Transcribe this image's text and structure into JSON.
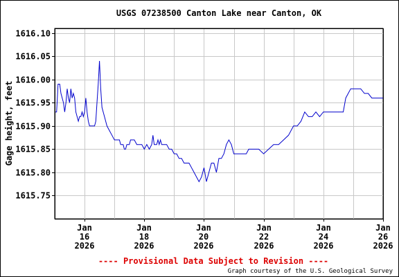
{
  "chart_data": {
    "type": "line",
    "title": "USGS 07238500 Canton Lake near Canton, OK",
    "ylabel": "Gage height, feet",
    "xlabel": "",
    "ylim": [
      1615.7,
      1616.11
    ],
    "xlim": [
      "2026-01-15",
      "2026-01-26"
    ],
    "y_ticks": [
      "1615.75",
      "1615.80",
      "1615.85",
      "1615.90",
      "1615.95",
      "1616.00",
      "1616.05",
      "1616.10"
    ],
    "x_ticks": [
      {
        "date": "2026-01-16",
        "lines": [
          "Jan",
          "16",
          "2026"
        ]
      },
      {
        "date": "2026-01-18",
        "lines": [
          "Jan",
          "18",
          "2026"
        ]
      },
      {
        "date": "2026-01-20",
        "lines": [
          "Jan",
          "20",
          "2026"
        ]
      },
      {
        "date": "2026-01-22",
        "lines": [
          "Jan",
          "22",
          "2026"
        ]
      },
      {
        "date": "2026-01-24",
        "lines": [
          "Jan",
          "24",
          "2026"
        ]
      },
      {
        "date": "2026-01-26",
        "lines": [
          "Jan",
          "26",
          "2026"
        ]
      }
    ],
    "grid": true,
    "series": [
      {
        "color": "#0000cc",
        "x": [
          "2026-01-15 00:00",
          "2026-01-15 01:30",
          "2026-01-15 02:40",
          "2026-01-15 04:00",
          "2026-01-15 05:00",
          "2026-01-15 06:00",
          "2026-01-15 07:00",
          "2026-01-15 08:00",
          "2026-01-15 09:00",
          "2026-01-15 10:00",
          "2026-01-15 11:00",
          "2026-01-15 12:00",
          "2026-01-15 13:00",
          "2026-01-15 14:00",
          "2026-01-15 15:00",
          "2026-01-15 16:00",
          "2026-01-15 17:00",
          "2026-01-15 18:00",
          "2026-01-15 19:00",
          "2026-01-15 20:00",
          "2026-01-15 21:00",
          "2026-01-15 22:00",
          "2026-01-15 23:00",
          "2026-01-16 00:00",
          "2026-01-16 01:00",
          "2026-01-16 02:00",
          "2026-01-16 03:00",
          "2026-01-16 04:00",
          "2026-01-16 05:00",
          "2026-01-16 06:00",
          "2026-01-16 07:00",
          "2026-01-16 08:00",
          "2026-01-16 09:00",
          "2026-01-16 10:00",
          "2026-01-16 11:00",
          "2026-01-16 12:00",
          "2026-01-16 13:00",
          "2026-01-16 14:00",
          "2026-01-16 15:00",
          "2026-01-16 16:00",
          "2026-01-16 18:00",
          "2026-01-16 20:00",
          "2026-01-16 22:00",
          "2026-01-17 00:00",
          "2026-01-17 02:00",
          "2026-01-17 04:00",
          "2026-01-17 05:00",
          "2026-01-17 06:00",
          "2026-01-17 07:00",
          "2026-01-17 08:00",
          "2026-01-17 09:00",
          "2026-01-17 10:00",
          "2026-01-17 11:00",
          "2026-01-17 12:00",
          "2026-01-17 13:00",
          "2026-01-17 14:00",
          "2026-01-17 16:00",
          "2026-01-17 18:00",
          "2026-01-17 20:00",
          "2026-01-17 22:00",
          "2026-01-18 00:00",
          "2026-01-18 02:00",
          "2026-01-18 04:00",
          "2026-01-18 06:00",
          "2026-01-18 07:00",
          "2026-01-18 08:00",
          "2026-01-18 09:00",
          "2026-01-18 10:00",
          "2026-01-18 11:00",
          "2026-01-18 12:00",
          "2026-01-18 13:00",
          "2026-01-18 14:00",
          "2026-01-18 16:00",
          "2026-01-18 18:00",
          "2026-01-18 20:00",
          "2026-01-18 22:00",
          "2026-01-19 00:00",
          "2026-01-19 02:00",
          "2026-01-19 04:00",
          "2026-01-19 06:00",
          "2026-01-19 08:00",
          "2026-01-19 10:00",
          "2026-01-19 12:00",
          "2026-01-19 14:00",
          "2026-01-19 16:00",
          "2026-01-19 18:00",
          "2026-01-19 20:00",
          "2026-01-19 22:00",
          "2026-01-20 00:00",
          "2026-01-20 02:00",
          "2026-01-20 04:00",
          "2026-01-20 06:00",
          "2026-01-20 08:00",
          "2026-01-20 10:00",
          "2026-01-20 12:00",
          "2026-01-20 14:00",
          "2026-01-20 16:00",
          "2026-01-20 18:00",
          "2026-01-20 20:00",
          "2026-01-20 22:00",
          "2026-01-21 00:00",
          "2026-01-21 02:00",
          "2026-01-21 04:00",
          "2026-01-21 06:00",
          "2026-01-21 08:00",
          "2026-01-21 10:00",
          "2026-01-21 12:00",
          "2026-01-21 16:00",
          "2026-01-21 20:00",
          "2026-01-22 00:00",
          "2026-01-22 04:00",
          "2026-01-22 08:00",
          "2026-01-22 12:00",
          "2026-01-22 16:00",
          "2026-01-22 20:00",
          "2026-01-23 00:00",
          "2026-01-23 03:00",
          "2026-01-23 06:00",
          "2026-01-23 09:00",
          "2026-01-23 12:00",
          "2026-01-23 15:00",
          "2026-01-23 18:00",
          "2026-01-23 21:00",
          "2026-01-24 00:00",
          "2026-01-24 04:00",
          "2026-01-24 08:00",
          "2026-01-24 12:00",
          "2026-01-24 14:00",
          "2026-01-24 16:00",
          "2026-01-24 18:00",
          "2026-01-24 20:00",
          "2026-01-24 22:00",
          "2026-01-25 00:00",
          "2026-01-25 03:00",
          "2026-01-25 06:00",
          "2026-01-25 09:00",
          "2026-01-25 12:00",
          "2026-01-25 15:00",
          "2026-01-25 18:00",
          "2026-01-25 21:00",
          "2026-01-26 00:00"
        ],
        "y": [
          1615.93,
          1615.93,
          1615.99,
          1615.99,
          1615.97,
          1615.96,
          1615.95,
          1615.93,
          1615.95,
          1615.98,
          1615.96,
          1615.95,
          1615.98,
          1615.96,
          1615.97,
          1615.96,
          1615.93,
          1615.92,
          1615.91,
          1615.92,
          1615.92,
          1615.93,
          1615.92,
          1615.93,
          1615.96,
          1615.93,
          1615.91,
          1615.9,
          1615.9,
          1615.9,
          1615.9,
          1615.9,
          1615.91,
          1615.95,
          1615.99,
          1616.04,
          1615.98,
          1615.94,
          1615.93,
          1615.92,
          1615.9,
          1615.89,
          1615.88,
          1615.87,
          1615.87,
          1615.87,
          1615.86,
          1615.86,
          1615.86,
          1615.85,
          1615.85,
          1615.86,
          1615.86,
          1615.86,
          1615.87,
          1615.87,
          1615.87,
          1615.86,
          1615.86,
          1615.86,
          1615.85,
          1615.86,
          1615.85,
          1615.86,
          1615.88,
          1615.86,
          1615.86,
          1615.86,
          1615.87,
          1615.86,
          1615.87,
          1615.86,
          1615.86,
          1615.86,
          1615.85,
          1615.85,
          1615.84,
          1615.84,
          1615.83,
          1615.83,
          1615.82,
          1615.82,
          1615.82,
          1615.81,
          1615.8,
          1615.79,
          1615.78,
          1615.79,
          1615.81,
          1615.78,
          1615.8,
          1615.82,
          1615.82,
          1615.8,
          1615.83,
          1615.83,
          1615.84,
          1615.86,
          1615.87,
          1615.86,
          1615.84,
          1615.84,
          1615.84,
          1615.84,
          1615.84,
          1615.84,
          1615.85,
          1615.85,
          1615.85,
          1615.84,
          1615.85,
          1615.86,
          1615.86,
          1615.87,
          1615.88,
          1615.9,
          1615.9,
          1615.91,
          1615.93,
          1615.92,
          1615.92,
          1615.93,
          1615.92,
          1615.93,
          1615.93,
          1615.93,
          1615.93,
          1615.93,
          1615.93,
          1615.96,
          1615.97,
          1615.98,
          1615.98,
          1615.98,
          1615.98,
          1615.97,
          1615.97,
          1615.96,
          1615.96,
          1615.96,
          1615.96
        ]
      }
    ]
  },
  "provisional_note": "---- Provisional Data Subject to Revision ----",
  "credit": "Graph courtesy of the U.S. Geological Survey"
}
